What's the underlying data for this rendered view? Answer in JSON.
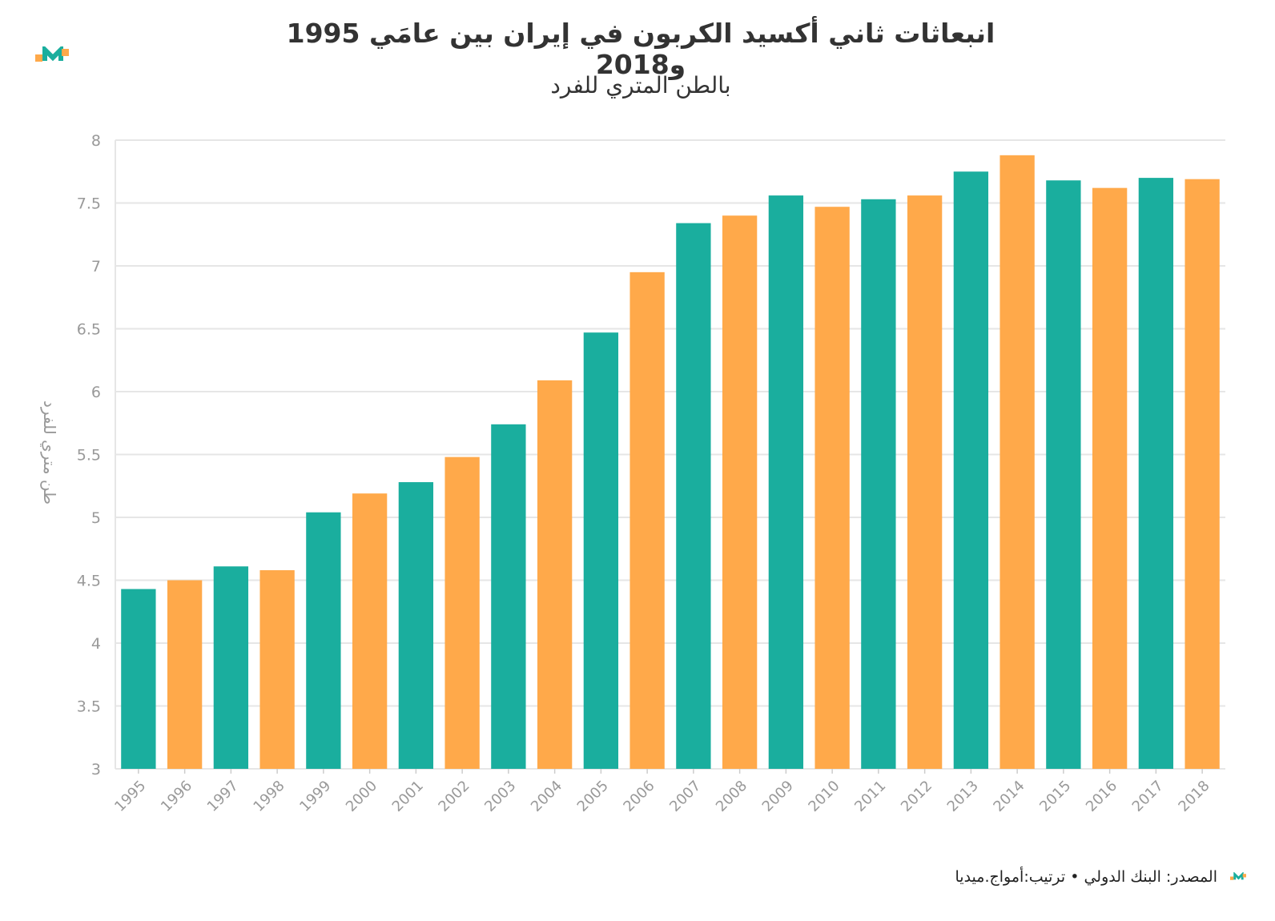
{
  "header": {
    "title": "انبعاثات ثاني أكسيد الكربون في إيران بين عامَي 1995 و2018",
    "subtitle": "بالطن المتري للفرد"
  },
  "footer": {
    "source": "المصدر: البنك الدولي • ترتيب:أمواج.ميديا"
  },
  "colors": {
    "teal": "#1AAE9E",
    "orange": "#FFA94A",
    "grid": "#e6e6e6",
    "axis_text": "#999999"
  },
  "chart_data": {
    "type": "bar",
    "title": "انبعاثات ثاني أكسيد الكربون في إيران بين عامَي 1995 و2018",
    "subtitle": "بالطن المتري للفرد",
    "xlabel": "",
    "ylabel": "طن متري للفرد",
    "ylim": [
      3,
      8
    ],
    "yticks": [
      3,
      3.5,
      4,
      4.5,
      5,
      5.5,
      6,
      6.5,
      7,
      7.5,
      8
    ],
    "grid": true,
    "categories": [
      "1995",
      "1996",
      "1997",
      "1998",
      "1999",
      "2000",
      "2001",
      "2002",
      "2003",
      "2004",
      "2005",
      "2006",
      "2007",
      "2008",
      "2009",
      "2010",
      "2011",
      "2012",
      "2013",
      "2014",
      "2015",
      "2016",
      "2017",
      "2018"
    ],
    "values": [
      4.43,
      4.5,
      4.61,
      4.58,
      5.04,
      5.19,
      5.28,
      5.48,
      5.74,
      6.09,
      6.47,
      6.95,
      7.34,
      7.4,
      7.56,
      7.47,
      7.53,
      7.56,
      7.75,
      7.88,
      7.68,
      7.62,
      7.7,
      7.69
    ],
    "bar_colors": [
      "teal",
      "orange",
      "teal",
      "orange",
      "teal",
      "orange",
      "teal",
      "orange",
      "teal",
      "orange",
      "teal",
      "orange",
      "teal",
      "orange",
      "teal",
      "orange",
      "teal",
      "orange",
      "teal",
      "orange",
      "teal",
      "orange",
      "teal",
      "orange"
    ]
  }
}
